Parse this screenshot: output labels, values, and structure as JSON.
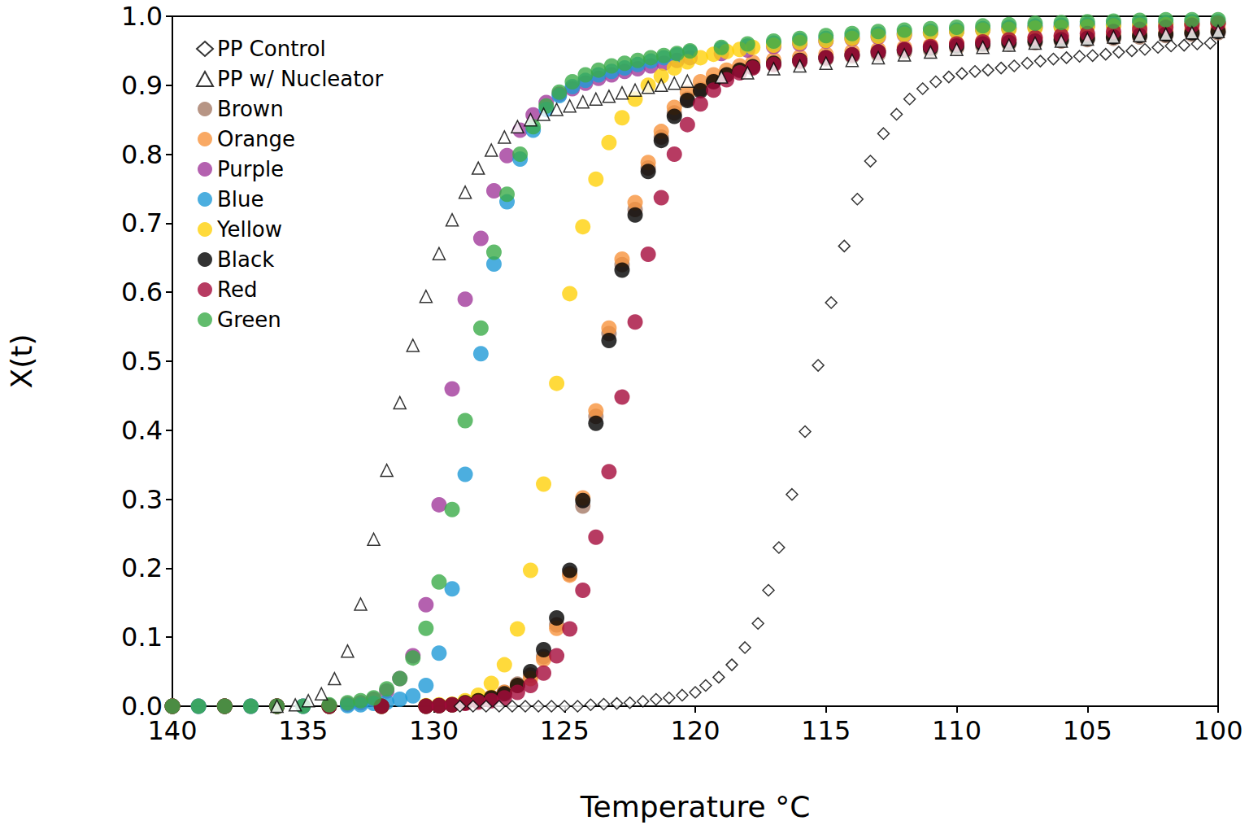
{
  "chart_data": {
    "type": "scatter",
    "x_label": "Temperature °C",
    "y_label": "X(t)",
    "xlim": [
      140,
      100
    ],
    "xticks": [
      140,
      135,
      130,
      125,
      120,
      115,
      110,
      105,
      100
    ],
    "ylim": [
      0,
      1
    ],
    "yticks": [
      {
        "value": 0,
        "label": "0.0"
      },
      0.1,
      0.2,
      0.3,
      0.4,
      0.5,
      0.6,
      0.7,
      0.8,
      0.9,
      {
        "value": 1,
        "label": "1.0"
      }
    ],
    "grid": false,
    "legend": "top-left",
    "series": [
      {
        "name": "PP Control",
        "color": "#000000",
        "marker": "diamond-open",
        "x": [
          129,
          128.5,
          128,
          127.5,
          127,
          126.5,
          126,
          125.5,
          125,
          124.5,
          124,
          123.5,
          123,
          122.5,
          122,
          121.5,
          121,
          120.5,
          120,
          119.6,
          119.1,
          118.6,
          118.1,
          117.6,
          117.2,
          116.8,
          116.3,
          115.8,
          115.3,
          114.8,
          114.3,
          113.8,
          113.3,
          112.8,
          112.3,
          111.8,
          111.3,
          110.8,
          110.3,
          109.8,
          109.3,
          108.8,
          108.3,
          107.8,
          107.3,
          106.8,
          106.3,
          105.8,
          105.3,
          104.8,
          104.3,
          103.8,
          103.3,
          102.8,
          102.3,
          101.8,
          101.3,
          100.8,
          100.3
        ],
        "values": [
          0,
          0,
          0,
          0,
          0,
          0,
          0,
          0,
          0,
          0,
          0.002,
          0.003,
          0.004,
          0.005,
          0.007,
          0.01,
          0.012,
          0.016,
          0.02,
          0.03,
          0.042,
          0.06,
          0.085,
          0.12,
          0.168,
          0.23,
          0.307,
          0.398,
          0.494,
          0.585,
          0.667,
          0.735,
          0.79,
          0.83,
          0.858,
          0.88,
          0.895,
          0.905,
          0.912,
          0.917,
          0.92,
          0.922,
          0.925,
          0.928,
          0.932,
          0.935,
          0.938,
          0.94,
          0.942,
          0.943,
          0.945,
          0.948,
          0.95,
          0.952,
          0.955,
          0.957,
          0.958,
          0.96,
          0.961
        ]
      },
      {
        "name": "PP w/ Nucleator",
        "color": "#000000",
        "marker": "triangle-open",
        "x": [
          136,
          135.3,
          134.8,
          134.3,
          133.8,
          133.3,
          132.8,
          132.3,
          131.8,
          131.3,
          130.8,
          130.3,
          129.8,
          129.3,
          128.8,
          128.3,
          127.8,
          127.3,
          126.8,
          126.3,
          125.8,
          125.3,
          124.8,
          124.3,
          123.8,
          123.3,
          122.8,
          122.3,
          121.8,
          121.3,
          120.8,
          120.3,
          119,
          118,
          117,
          116,
          115,
          114,
          113,
          112,
          111,
          110,
          109,
          108,
          107,
          106,
          105,
          104,
          103,
          102,
          101,
          100
        ],
        "values": [
          0,
          0.002,
          0.008,
          0.018,
          0.04,
          0.08,
          0.148,
          0.242,
          0.342,
          0.44,
          0.523,
          0.594,
          0.656,
          0.705,
          0.745,
          0.78,
          0.806,
          0.825,
          0.84,
          0.85,
          0.858,
          0.865,
          0.87,
          0.876,
          0.88,
          0.884,
          0.889,
          0.893,
          0.897,
          0.9,
          0.903,
          0.906,
          0.912,
          0.918,
          0.924,
          0.928,
          0.932,
          0.936,
          0.94,
          0.944,
          0.948,
          0.952,
          0.955,
          0.958,
          0.961,
          0.964,
          0.967,
          0.97,
          0.972,
          0.974,
          0.976,
          0.978
        ]
      },
      {
        "name": "Brown",
        "color": "#a57b66",
        "marker": "circle",
        "x": [
          140,
          138,
          136,
          134,
          132,
          130.3,
          129.8,
          129.3,
          128.8,
          128.3,
          127.8,
          127.3,
          126.8,
          126.3,
          125.8,
          125.3,
          124.8,
          124.3,
          123.8,
          123.3,
          122.8,
          122.3,
          121.8,
          121.3,
          120.8,
          120.3,
          119.8,
          119.3,
          118.8,
          118.3,
          117.8,
          117,
          116,
          115,
          114,
          113,
          112,
          111,
          110,
          109,
          108,
          107,
          106,
          105,
          104,
          103,
          102,
          101,
          100
        ],
        "values": [
          0,
          0,
          0,
          0,
          0,
          0,
          0.001,
          0.002,
          0.005,
          0.008,
          0.013,
          0.02,
          0.032,
          0.045,
          0.072,
          0.118,
          0.192,
          0.29,
          0.42,
          0.54,
          0.64,
          0.72,
          0.78,
          0.825,
          0.86,
          0.88,
          0.894,
          0.906,
          0.915,
          0.921,
          0.926,
          0.93,
          0.934,
          0.938,
          0.942,
          0.945,
          0.948,
          0.951,
          0.954,
          0.957,
          0.96,
          0.962,
          0.964,
          0.966,
          0.968,
          0.97,
          0.972,
          0.974,
          0.976
        ]
      },
      {
        "name": "Orange",
        "color": "#f7943d",
        "marker": "circle",
        "x": [
          140,
          138,
          136,
          134,
          132,
          130.3,
          129.8,
          129.3,
          128.8,
          128.3,
          127.8,
          127.3,
          126.8,
          126.3,
          125.8,
          125.3,
          124.8,
          124.3,
          123.8,
          123.3,
          122.8,
          122.3,
          121.8,
          121.3,
          120.8,
          120.3,
          119.8,
          119.3,
          118.8,
          118.3,
          117.8,
          117,
          116,
          115,
          114,
          113,
          112,
          111,
          110,
          109,
          108,
          107,
          106,
          105,
          104,
          103,
          102,
          101,
          100
        ],
        "values": [
          0,
          0,
          0,
          0,
          0,
          0,
          0.001,
          0.002,
          0.005,
          0.008,
          0.013,
          0.02,
          0.03,
          0.04,
          0.068,
          0.113,
          0.19,
          0.302,
          0.428,
          0.548,
          0.648,
          0.73,
          0.788,
          0.833,
          0.868,
          0.89,
          0.905,
          0.915,
          0.922,
          0.928,
          0.933,
          0.937,
          0.941,
          0.945,
          0.949,
          0.952,
          0.955,
          0.958,
          0.961,
          0.964,
          0.966,
          0.968,
          0.97,
          0.972,
          0.974,
          0.976,
          0.978,
          0.98,
          0.982
        ]
      },
      {
        "name": "Purple",
        "color": "#a1399b",
        "marker": "circle",
        "x": [
          140,
          139,
          138,
          137,
          136,
          135,
          134,
          133.3,
          132.8,
          132.3,
          131.8,
          131.3,
          130.8,
          130.3,
          129.8,
          129.3,
          128.8,
          128.2,
          127.7,
          127.2,
          126.7,
          126.2,
          125.7,
          125.2,
          124.7,
          124.2,
          123.7,
          123.2,
          122.7,
          122.2,
          121.7,
          121.2,
          120.7,
          120.2,
          119,
          118,
          117,
          116,
          115,
          114,
          113,
          112,
          111,
          110,
          109,
          108,
          107,
          106,
          105,
          104,
          103,
          102,
          101,
          100
        ],
        "values": [
          0,
          0,
          0,
          0,
          0,
          0,
          0.001,
          0.003,
          0.005,
          0.01,
          0.022,
          0.04,
          0.073,
          0.147,
          0.292,
          0.46,
          0.59,
          0.678,
          0.747,
          0.798,
          0.835,
          0.857,
          0.875,
          0.887,
          0.895,
          0.903,
          0.91,
          0.915,
          0.92,
          0.924,
          0.928,
          0.932,
          0.936,
          0.94,
          0.946,
          0.951,
          0.956,
          0.96,
          0.964,
          0.967,
          0.97,
          0.973,
          0.976,
          0.978,
          0.98,
          0.982,
          0.984,
          0.985,
          0.986,
          0.987,
          0.988,
          0.989,
          0.99,
          0.99
        ]
      },
      {
        "name": "Blue",
        "color": "#1f9ad7",
        "marker": "circle",
        "x": [
          140,
          139,
          138,
          137,
          136,
          135,
          134,
          133.3,
          132.8,
          132.3,
          131.8,
          131.3,
          130.8,
          130.3,
          129.8,
          129.3,
          128.8,
          128.2,
          127.7,
          127.2,
          126.7,
          126.2,
          125.7,
          125.2,
          124.7,
          124.2,
          123.7,
          123.2,
          122.7,
          122.2,
          121.7,
          121.2,
          120.7,
          120.2,
          119,
          118,
          117,
          116,
          115,
          114,
          113,
          112,
          111,
          110,
          109,
          108,
          107,
          106,
          105,
          104,
          103,
          102,
          101,
          100
        ],
        "values": [
          0,
          0,
          0,
          0,
          0,
          0,
          0,
          0.001,
          0.002,
          0.004,
          0.006,
          0.01,
          0.015,
          0.03,
          0.077,
          0.17,
          0.336,
          0.511,
          0.641,
          0.731,
          0.793,
          0.835,
          0.865,
          0.885,
          0.898,
          0.907,
          0.915,
          0.92,
          0.925,
          0.93,
          0.935,
          0.94,
          0.944,
          0.948,
          0.953,
          0.957,
          0.961,
          0.965,
          0.968,
          0.971,
          0.974,
          0.976,
          0.978,
          0.98,
          0.982,
          0.984,
          0.986,
          0.987,
          0.988,
          0.989,
          0.99,
          0.991,
          0.992,
          0.992
        ]
      },
      {
        "name": "Yellow",
        "color": "#ffd10a",
        "marker": "circle",
        "x": [
          140,
          138,
          136,
          134,
          132,
          130.3,
          129.8,
          129.3,
          128.8,
          128.3,
          127.8,
          127.3,
          126.8,
          126.3,
          125.8,
          125.3,
          124.8,
          124.3,
          123.8,
          123.3,
          122.8,
          122.3,
          121.8,
          121.3,
          120.8,
          120.3,
          119.8,
          119.3,
          118.8,
          118.3,
          117.8,
          117,
          116,
          115,
          114,
          113,
          112,
          111,
          110,
          109,
          108,
          107,
          106,
          105,
          104,
          103,
          102,
          101,
          100
        ],
        "values": [
          0,
          0,
          0,
          0,
          0,
          0.001,
          0.002,
          0.003,
          0.008,
          0.016,
          0.033,
          0.06,
          0.112,
          0.197,
          0.322,
          0.468,
          0.598,
          0.695,
          0.764,
          0.817,
          0.853,
          0.88,
          0.9,
          0.913,
          0.925,
          0.934,
          0.94,
          0.945,
          0.949,
          0.952,
          0.955,
          0.958,
          0.962,
          0.965,
          0.968,
          0.971,
          0.974,
          0.976,
          0.978,
          0.98,
          0.981,
          0.983,
          0.984,
          0.985,
          0.986,
          0.987,
          0.988,
          0.989,
          0.99
        ]
      },
      {
        "name": "Black",
        "color": "#000000",
        "marker": "circle",
        "x": [
          140,
          138,
          136,
          134,
          132,
          130.3,
          129.8,
          129.3,
          128.8,
          128.3,
          127.8,
          127.3,
          126.8,
          126.3,
          125.8,
          125.3,
          124.8,
          124.3,
          123.8,
          123.3,
          122.8,
          122.3,
          121.8,
          121.3,
          120.8,
          120.3,
          119.8,
          119.3,
          118.8,
          118.3,
          117.8,
          117,
          116,
          115,
          114,
          113,
          112,
          111,
          110,
          109,
          108,
          107,
          106,
          105,
          104,
          103,
          102,
          101,
          100
        ],
        "values": [
          0,
          0,
          0,
          0,
          0,
          0,
          0.001,
          0.002,
          0.005,
          0.008,
          0.012,
          0.018,
          0.03,
          0.05,
          0.082,
          0.128,
          0.197,
          0.298,
          0.41,
          0.53,
          0.632,
          0.712,
          0.775,
          0.82,
          0.855,
          0.878,
          0.892,
          0.905,
          0.915,
          0.922,
          0.927,
          0.932,
          0.936,
          0.94,
          0.944,
          0.948,
          0.951,
          0.954,
          0.957,
          0.96,
          0.962,
          0.964,
          0.966,
          0.968,
          0.97,
          0.972,
          0.974,
          0.976,
          0.978
        ]
      },
      {
        "name": "Red",
        "color": "#a50a3b",
        "marker": "circle",
        "x": [
          140,
          138,
          136,
          134,
          132,
          130.3,
          129.8,
          129.3,
          128.8,
          128.3,
          127.8,
          127.3,
          126.8,
          126.3,
          125.8,
          125.3,
          124.8,
          124.3,
          123.8,
          123.3,
          122.8,
          122.3,
          121.8,
          121.3,
          120.8,
          120.3,
          119.8,
          119.3,
          118.8,
          118.3,
          117.8,
          117,
          116,
          115,
          114,
          113,
          112,
          111,
          110,
          109,
          108,
          107,
          106,
          105,
          104,
          103,
          102,
          101,
          100
        ],
        "values": [
          0,
          0,
          0,
          0,
          0,
          0,
          0.001,
          0.002,
          0.004,
          0.006,
          0.008,
          0.012,
          0.02,
          0.03,
          0.048,
          0.073,
          0.112,
          0.168,
          0.245,
          0.34,
          0.448,
          0.557,
          0.655,
          0.737,
          0.8,
          0.843,
          0.873,
          0.893,
          0.908,
          0.918,
          0.925,
          0.93,
          0.935,
          0.94,
          0.944,
          0.948,
          0.952,
          0.956,
          0.96,
          0.963,
          0.966,
          0.969,
          0.972,
          0.975,
          0.978,
          0.981,
          0.984,
          0.987,
          0.99
        ]
      },
      {
        "name": "Green",
        "color": "#3bab48",
        "marker": "circle",
        "x": [
          140,
          139,
          138,
          137,
          136,
          135,
          134,
          133.3,
          132.8,
          132.3,
          131.8,
          131.3,
          130.8,
          130.3,
          129.8,
          129.3,
          128.8,
          128.2,
          127.7,
          127.2,
          126.7,
          126.2,
          125.7,
          125.2,
          124.7,
          124.2,
          123.7,
          123.2,
          122.7,
          122.2,
          121.7,
          121.2,
          120.7,
          120.2,
          119,
          118,
          117,
          116,
          115,
          114,
          113,
          112,
          111,
          110,
          109,
          108,
          107,
          106,
          105,
          104,
          103,
          102,
          101,
          100
        ],
        "values": [
          0,
          0,
          0,
          0,
          0,
          0,
          0.002,
          0.005,
          0.008,
          0.012,
          0.025,
          0.04,
          0.07,
          0.113,
          0.18,
          0.285,
          0.414,
          0.548,
          0.658,
          0.742,
          0.8,
          0.84,
          0.87,
          0.89,
          0.905,
          0.915,
          0.922,
          0.928,
          0.932,
          0.936,
          0.94,
          0.943,
          0.946,
          0.95,
          0.955,
          0.96,
          0.964,
          0.968,
          0.972,
          0.975,
          0.978,
          0.98,
          0.982,
          0.984,
          0.986,
          0.988,
          0.99,
          0.991,
          0.992,
          0.993,
          0.994,
          0.995,
          0.995,
          0.995
        ]
      }
    ]
  }
}
